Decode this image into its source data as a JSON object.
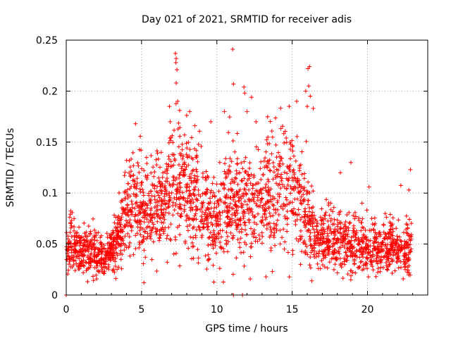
{
  "chart_data": {
    "type": "scatter",
    "title": "Day 021 of 2021, SRMTID for receiver adis",
    "xlabel": "GPS time / hours",
    "ylabel": "SRMTID / TECUs",
    "xlim": [
      0,
      24
    ],
    "ylim": [
      0,
      0.25
    ],
    "x_ticks": [
      0,
      5,
      10,
      15,
      20
    ],
    "x_tick_labels": [
      "0",
      "5",
      "10",
      "15",
      "20"
    ],
    "y_ticks": [
      0,
      0.05,
      0.1,
      0.15,
      0.2,
      0.25
    ],
    "y_tick_labels": [
      "0",
      "0.05",
      "0.1",
      "0.15",
      "0.2",
      "0.25"
    ],
    "grid": true,
    "marker": "plus",
    "series": [
      {
        "name": "SRMTID",
        "color": "#ff0000",
        "profile_hours": [
          0,
          0.5,
          1,
          1.5,
          2,
          2.5,
          3,
          3.5,
          4,
          4.5,
          5,
          5.5,
          6,
          6.5,
          7,
          7.5,
          8,
          8.5,
          9,
          9.5,
          10,
          10.5,
          11,
          11.5,
          12,
          12.5,
          13,
          13.5,
          14,
          14.5,
          15,
          15.5,
          16,
          16.5,
          17,
          17.5,
          18,
          18.5,
          19,
          19.5,
          20,
          20.5,
          21,
          21.5,
          22,
          22.5,
          23
        ],
        "profile_median": [
          0.042,
          0.045,
          0.043,
          0.041,
          0.038,
          0.036,
          0.042,
          0.06,
          0.078,
          0.09,
          0.08,
          0.082,
          0.085,
          0.095,
          0.1,
          0.105,
          0.1,
          0.095,
          0.085,
          0.078,
          0.08,
          0.085,
          0.09,
          0.092,
          0.088,
          0.085,
          0.09,
          0.1,
          0.105,
          0.11,
          0.1,
          0.09,
          0.075,
          0.055,
          0.055,
          0.053,
          0.052,
          0.05,
          0.048,
          0.05,
          0.047,
          0.046,
          0.045,
          0.045,
          0.046,
          0.045,
          0.044
        ],
        "extra_points": [
          {
            "x": 7.25,
            "y": 0.237
          },
          {
            "x": 7.3,
            "y": 0.232
          },
          {
            "x": 7.28,
            "y": 0.228
          },
          {
            "x": 7.35,
            "y": 0.221
          },
          {
            "x": 7.3,
            "y": 0.208
          },
          {
            "x": 7.4,
            "y": 0.19
          },
          {
            "x": 6.85,
            "y": 0.185
          },
          {
            "x": 6.9,
            "y": 0.17
          },
          {
            "x": 8.2,
            "y": 0.18
          },
          {
            "x": 11.05,
            "y": 0.241
          },
          {
            "x": 11.1,
            "y": 0.207
          },
          {
            "x": 11.8,
            "y": 0.204
          },
          {
            "x": 11.85,
            "y": 0.198
          },
          {
            "x": 12.3,
            "y": 0.194
          },
          {
            "x": 12.0,
            "y": 0.18
          },
          {
            "x": 12.6,
            "y": 0.17
          },
          {
            "x": 14.8,
            "y": 0.185
          },
          {
            "x": 15.3,
            "y": 0.19
          },
          {
            "x": 16.05,
            "y": 0.222
          },
          {
            "x": 16.15,
            "y": 0.224
          },
          {
            "x": 16.1,
            "y": 0.205
          },
          {
            "x": 15.9,
            "y": 0.2
          },
          {
            "x": 16.2,
            "y": 0.195
          },
          {
            "x": 16.0,
            "y": 0.185
          },
          {
            "x": 16.4,
            "y": 0.183
          },
          {
            "x": 4.6,
            "y": 0.168
          },
          {
            "x": 9.6,
            "y": 0.17
          },
          {
            "x": 10.5,
            "y": 0.18
          },
          {
            "x": 22.85,
            "y": 0.123
          },
          {
            "x": 22.75,
            "y": 0.103
          },
          {
            "x": 18.9,
            "y": 0.13
          },
          {
            "x": 20.1,
            "y": 0.106
          },
          {
            "x": 18.2,
            "y": 0.12
          },
          {
            "x": 16.3,
            "y": 0.014
          },
          {
            "x": 0.0,
            "y": 0.0
          },
          {
            "x": 11.1,
            "y": 0.0
          },
          {
            "x": 11.7,
            "y": 0.0
          }
        ]
      }
    ]
  }
}
